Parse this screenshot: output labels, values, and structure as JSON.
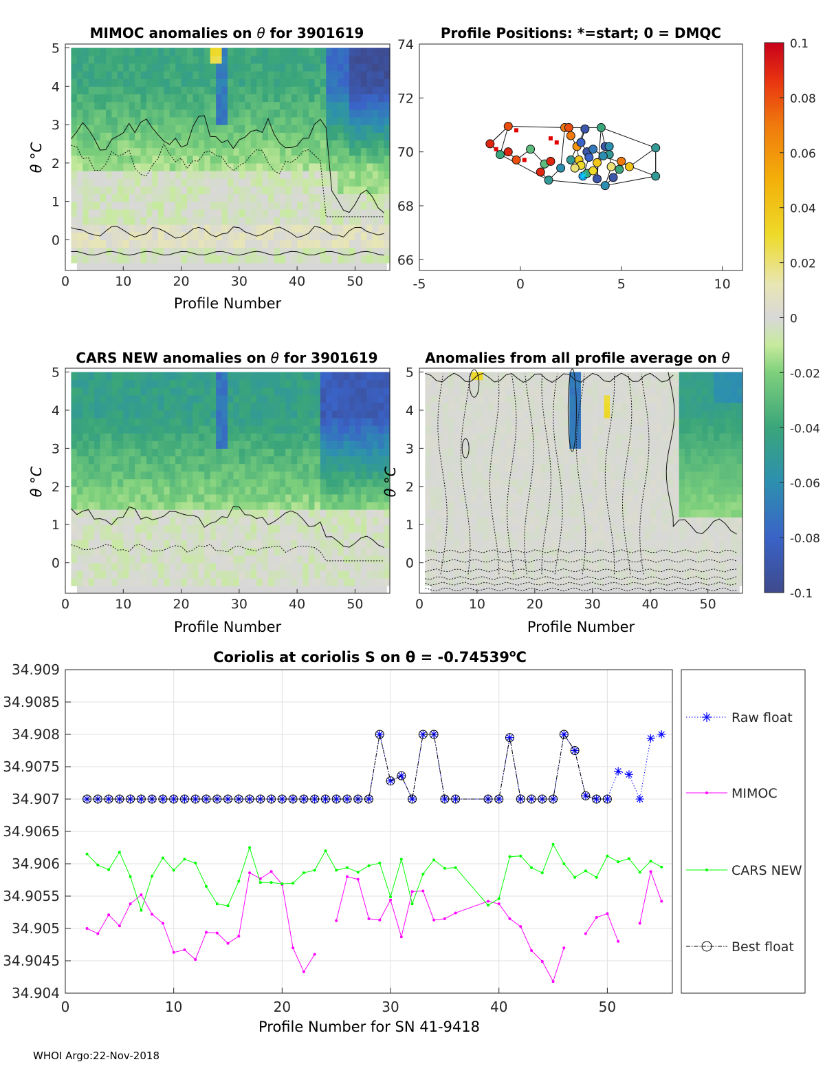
{
  "footer": "WHOI Argo:22-Nov-2018",
  "colors": {
    "raw": "#0000ff",
    "mimoc": "#ff00ff",
    "cars": "#00ff00",
    "best": "#000000",
    "axis": "#262626",
    "grid": "#e0e0e0",
    "neutral": "#d7d7d7"
  },
  "colorbar": {
    "ticks": [
      "0.1",
      "0.08",
      "0.06",
      "0.04",
      "0.02",
      "0",
      "-0.02",
      "-0.04",
      "-0.06",
      "-0.08",
      "-0.1"
    ],
    "range": [
      -0.1,
      0.1
    ]
  },
  "chart_data": [
    {
      "type": "heatmap",
      "id": "mimoc",
      "title_left": "MIMOC anomalies on ",
      "title_sym": "θ",
      "title_right": "  for 3901619",
      "xlabel": "Profile Number",
      "ylabel": "θ °C",
      "xlim": [
        0,
        56
      ],
      "ylim": [
        -0.8,
        5.1
      ],
      "xticks": [
        "0",
        "10",
        "20",
        "30",
        "40",
        "50"
      ],
      "yticks": [
        "0",
        "1",
        "2",
        "3",
        "4",
        "5"
      ]
    },
    {
      "type": "scatter",
      "id": "positions",
      "title": "Profile Positions: *=start; 0 = DMQC",
      "xlim": [
        -5,
        11
      ],
      "ylim": [
        65.6,
        74
      ],
      "xticks": [
        "-5",
        "0",
        "5",
        "10"
      ],
      "yticks": [
        "66",
        "68",
        "70",
        "72",
        "74"
      ],
      "points": [
        {
          "x": -1.5,
          "y": 70.3,
          "v": 0.09
        },
        {
          "x": -0.6,
          "y": 70.95,
          "v": 0.08
        },
        {
          "x": -1.0,
          "y": 69.9,
          "v": -0.04
        },
        {
          "x": -0.6,
          "y": 70.0,
          "v": 0.09
        },
        {
          "x": -0.2,
          "y": 69.7,
          "v": 0.08
        },
        {
          "x": 0.5,
          "y": 70.1,
          "v": -0.03
        },
        {
          "x": 1.2,
          "y": 69.55,
          "v": -0.03
        },
        {
          "x": 1.5,
          "y": 69.65,
          "v": 0.09
        },
        {
          "x": 1.0,
          "y": 69.25,
          "v": 0.09
        },
        {
          "x": 1.4,
          "y": 68.95,
          "v": -0.05
        },
        {
          "x": 2.0,
          "y": 69.4,
          "v": -0.06
        },
        {
          "x": 2.2,
          "y": 70.9,
          "v": 0.07
        },
        {
          "x": 2.4,
          "y": 70.9,
          "v": 0.08
        },
        {
          "x": 2.5,
          "y": 70.6,
          "v": 0.07
        },
        {
          "x": 2.8,
          "y": 70.2,
          "v": 0.06
        },
        {
          "x": 2.9,
          "y": 69.7,
          "v": 0.04
        },
        {
          "x": 3.0,
          "y": 69.5,
          "v": 0.03
        },
        {
          "x": 2.7,
          "y": 69.4,
          "v": 0.02
        },
        {
          "x": 2.5,
          "y": 69.7,
          "v": -0.05
        },
        {
          "x": 3.2,
          "y": 70.85,
          "v": -0.09
        },
        {
          "x": 3.0,
          "y": 70.35,
          "v": -0.08
        },
        {
          "x": 3.3,
          "y": 70.0,
          "v": -0.09
        },
        {
          "x": 3.4,
          "y": 69.8,
          "v": -0.08
        },
        {
          "x": 3.1,
          "y": 69.1,
          "v": -0.08
        },
        {
          "x": 3.3,
          "y": 69.2,
          "v": -0.04
        },
        {
          "x": 3.6,
          "y": 69.3,
          "v": 0.03
        },
        {
          "x": 3.8,
          "y": 69.6,
          "v": 0.04
        },
        {
          "x": 3.8,
          "y": 69.0,
          "v": -0.09
        },
        {
          "x": 4.0,
          "y": 70.9,
          "v": -0.04
        },
        {
          "x": 4.2,
          "y": 70.2,
          "v": -0.09
        },
        {
          "x": 4.4,
          "y": 70.2,
          "v": -0.06
        },
        {
          "x": 4.4,
          "y": 69.9,
          "v": -0.05
        },
        {
          "x": 4.5,
          "y": 69.45,
          "v": 0.02
        },
        {
          "x": 4.2,
          "y": 68.75,
          "v": -0.06
        },
        {
          "x": 4.6,
          "y": 69.05,
          "v": -0.09
        },
        {
          "x": 4.9,
          "y": 69.35,
          "v": -0.04
        },
        {
          "x": 5.0,
          "y": 69.65,
          "v": 0.07
        },
        {
          "x": 5.4,
          "y": 69.45,
          "v": 0.04
        },
        {
          "x": 6.7,
          "y": 70.15,
          "v": -0.05
        },
        {
          "x": 6.7,
          "y": 69.1,
          "v": -0.05
        },
        {
          "x": 4.1,
          "y": 69.85,
          "v": -0.06
        },
        {
          "x": 3.6,
          "y": 70.1,
          "v": -0.07
        }
      ],
      "start": {
        "x": 3.1,
        "y": 69.1
      }
    },
    {
      "type": "heatmap",
      "id": "cars",
      "title_left": "CARS NEW anomalies on ",
      "title_sym": "θ",
      "title_right": " for 3901619",
      "xlabel": "Profile Number",
      "ylabel": "θ °C",
      "xlim": [
        0,
        56
      ],
      "ylim": [
        -0.8,
        5.1
      ],
      "xticks": [
        "0",
        "10",
        "20",
        "30",
        "40",
        "50"
      ],
      "yticks": [
        "0",
        "1",
        "2",
        "3",
        "4",
        "5"
      ]
    },
    {
      "type": "heatmap",
      "id": "allavg",
      "title_left": "Anomalies from all profile average on ",
      "title_sym": "θ",
      "title_right": "",
      "xlabel": "Profile Number",
      "ylabel": "θ °C",
      "xlim": [
        0,
        56
      ],
      "ylim": [
        -0.8,
        5.1
      ],
      "xticks": [
        "0",
        "10",
        "20",
        "30",
        "40",
        "50"
      ],
      "yticks": [
        "0",
        "1",
        "2",
        "3",
        "4",
        "5"
      ]
    },
    {
      "type": "line",
      "id": "salinity",
      "title": "Coriolis at coriolis S on θ = -0.74539",
      "title_sup": "o",
      "title_unit": "C",
      "xlabel": "Profile Number for SN 41-9418",
      "xlim": [
        0,
        56
      ],
      "ylim": [
        34.904,
        34.909
      ],
      "xticks": [
        "0",
        "10",
        "20",
        "30",
        "40",
        "50"
      ],
      "yticks": [
        "34.904",
        "34.9045",
        "34.905",
        "34.9055",
        "34.906",
        "34.9065",
        "34.907",
        "34.9075",
        "34.908",
        "34.9085",
        "34.909"
      ],
      "legend": [
        "Raw float",
        "MIMOC",
        "CARS NEW",
        "Best float"
      ],
      "legend_position": "right",
      "series": [
        {
          "name": "Raw float",
          "x": [
            2,
            3,
            4,
            5,
            6,
            7,
            8,
            9,
            10,
            11,
            12,
            13,
            14,
            15,
            16,
            17,
            18,
            19,
            20,
            21,
            22,
            23,
            24,
            25,
            26,
            27,
            28,
            29,
            30,
            31,
            32,
            33,
            34,
            35,
            36,
            39,
            40,
            41,
            42,
            43,
            44,
            45,
            46,
            47,
            48,
            49,
            50,
            51,
            52,
            53,
            54,
            55
          ],
          "y": [
            34.907,
            34.907,
            34.907,
            34.907,
            34.907,
            34.907,
            34.907,
            34.907,
            34.907,
            34.907,
            34.907,
            34.907,
            34.907,
            34.907,
            34.907,
            34.907,
            34.907,
            34.907,
            34.907,
            34.907,
            34.907,
            34.907,
            34.907,
            34.907,
            34.907,
            34.907,
            34.907,
            34.908,
            34.90728,
            34.90736,
            34.907,
            34.908,
            34.908,
            34.907,
            34.907,
            34.907,
            34.907,
            34.90795,
            34.907,
            34.907,
            34.907,
            34.907,
            34.908,
            34.90775,
            34.90705,
            34.907,
            34.907,
            34.90743,
            34.90738,
            34.907,
            34.90794,
            34.908
          ]
        },
        {
          "name": "Best float",
          "x": [
            2,
            3,
            4,
            5,
            6,
            7,
            8,
            9,
            10,
            11,
            12,
            13,
            14,
            15,
            16,
            17,
            18,
            19,
            20,
            21,
            22,
            23,
            24,
            25,
            26,
            27,
            28,
            29,
            30,
            31,
            32,
            33,
            34,
            35,
            36,
            39,
            40,
            41,
            42,
            43,
            44,
            45,
            46,
            47,
            48,
            49,
            50
          ],
          "y": [
            34.907,
            34.907,
            34.907,
            34.907,
            34.907,
            34.907,
            34.907,
            34.907,
            34.907,
            34.907,
            34.907,
            34.907,
            34.907,
            34.907,
            34.907,
            34.907,
            34.907,
            34.907,
            34.907,
            34.907,
            34.907,
            34.907,
            34.907,
            34.907,
            34.907,
            34.907,
            34.907,
            34.908,
            34.90728,
            34.90736,
            34.907,
            34.908,
            34.908,
            34.907,
            34.907,
            34.907,
            34.907,
            34.90795,
            34.907,
            34.907,
            34.907,
            34.907,
            34.908,
            34.90775,
            34.90705,
            34.907,
            34.907
          ]
        },
        {
          "name": "MIMOC",
          "segments": [
            {
              "x": [
                2,
                3,
                4,
                5,
                6,
                7,
                8,
                9,
                10,
                11,
                12,
                13,
                14,
                15,
                16,
                17,
                18,
                19,
                20,
                21,
                22,
                23
              ],
              "y": [
                34.905,
                34.90492,
                34.90521,
                34.90504,
                34.90538,
                34.90552,
                34.90522,
                34.90508,
                34.90463,
                34.90467,
                34.90452,
                34.90494,
                34.90493,
                34.90477,
                34.90488,
                34.90586,
                34.90577,
                34.90588,
                34.90568,
                34.9047,
                34.90433,
                34.9046
              ]
            },
            {
              "x": [
                25,
                26,
                27,
                28,
                29,
                30,
                31,
                32,
                33,
                34,
                35,
                36,
                39,
                40,
                41,
                42,
                43,
                44,
                45,
                46
              ],
              "y": [
                34.90512,
                34.9058,
                34.90576,
                34.90515,
                34.90513,
                34.90544,
                34.90487,
                34.90557,
                34.90558,
                34.90513,
                34.90515,
                34.90524,
                34.90542,
                34.90538,
                34.90515,
                34.90503,
                34.90466,
                34.90449,
                34.90418,
                34.9047
              ]
            },
            {
              "x": [
                48,
                49,
                50,
                51
              ],
              "y": [
                34.90492,
                34.90517,
                34.90523,
                34.9048
              ]
            },
            {
              "x": [
                53,
                54,
                55
              ],
              "y": [
                34.90508,
                34.90588,
                34.90542
              ]
            }
          ]
        },
        {
          "name": "CARS NEW",
          "x": [
            2,
            3,
            4,
            5,
            6,
            7,
            8,
            9,
            10,
            11,
            12,
            13,
            14,
            15,
            16,
            17,
            18,
            19,
            20,
            21,
            22,
            23,
            24,
            25,
            26,
            27,
            28,
            29,
            30,
            31,
            32,
            33,
            34,
            35,
            36,
            39,
            40,
            41,
            42,
            43,
            44,
            45,
            46,
            47,
            48,
            49,
            50,
            51,
            52,
            53,
            54,
            55
          ],
          "y": [
            34.90615,
            34.90598,
            34.90591,
            34.90618,
            34.9058,
            34.90528,
            34.90581,
            34.90609,
            34.9059,
            34.90607,
            34.90601,
            34.90565,
            34.90538,
            34.90535,
            34.90573,
            34.90625,
            34.90571,
            34.90571,
            34.90569,
            34.9057,
            34.90586,
            34.9059,
            34.9062,
            34.9059,
            34.90594,
            34.90587,
            34.90597,
            34.90601,
            34.90549,
            34.90607,
            34.90538,
            34.90584,
            34.90606,
            34.90593,
            34.90594,
            34.90536,
            34.90546,
            34.90611,
            34.90612,
            34.90594,
            34.90586,
            34.9063,
            34.906,
            34.90579,
            34.90589,
            34.90579,
            34.90612,
            34.90603,
            34.90608,
            34.90587,
            34.90604,
            34.90595
          ]
        }
      ]
    }
  ]
}
